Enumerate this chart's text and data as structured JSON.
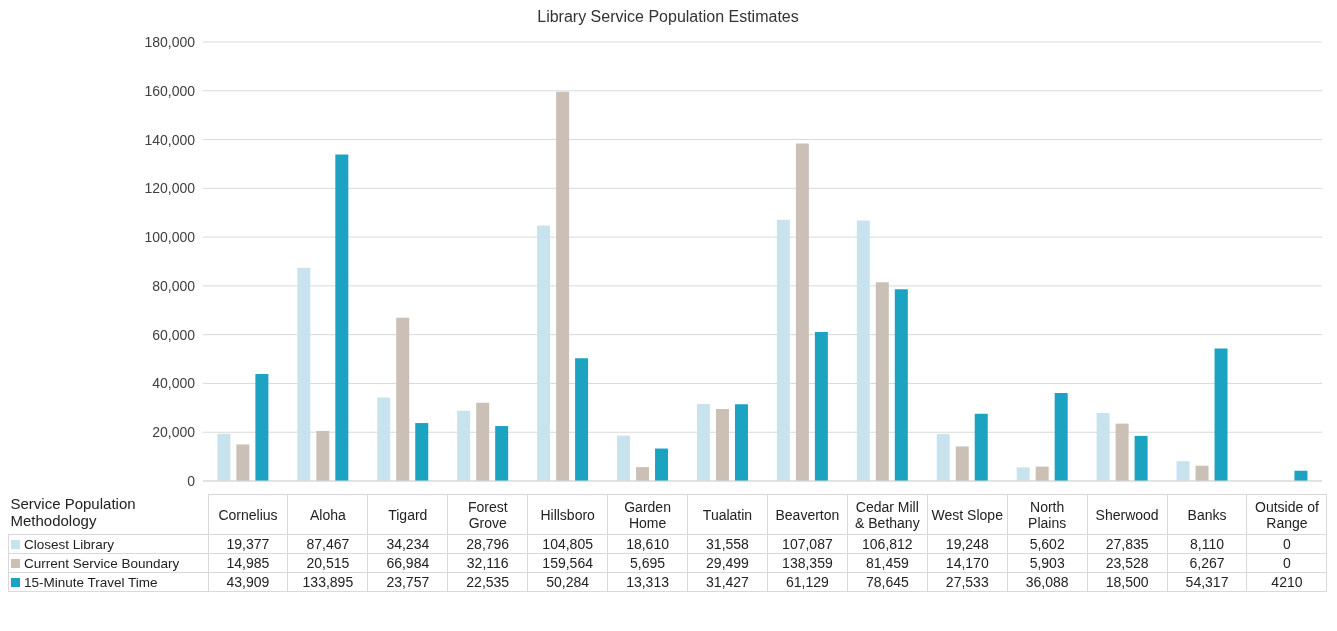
{
  "chart_data": {
    "type": "bar",
    "title": "Library Service Population Estimates",
    "legend_title": "Service Population Methodology",
    "categories": [
      "Cornelius",
      "Aloha",
      "Tigard",
      "Forest Grove",
      "Hillsboro",
      "Garden Home",
      "Tualatin",
      "Beaverton",
      "Cedar Mill & Bethany",
      "West Slope",
      "North Plains",
      "Sherwood",
      "Banks",
      "Outside of Range"
    ],
    "series": [
      {
        "name": "Closest Library",
        "color": "#c9e3ee",
        "values": [
          19377,
          87467,
          34234,
          28796,
          104805,
          18610,
          31558,
          107087,
          106812,
          19248,
          5602,
          27835,
          8110,
          0
        ],
        "value_labels": [
          "19,377",
          "87,467",
          "34,234",
          "28,796",
          "104,805",
          "18,610",
          "31,558",
          "107,087",
          "106,812",
          "19,248",
          "5,602",
          "27,835",
          "8,110",
          "0"
        ]
      },
      {
        "name": "Current Service Boundary",
        "color": "#cbc0b5",
        "values": [
          14985,
          20515,
          66984,
          32116,
          159564,
          5695,
          29499,
          138359,
          81459,
          14170,
          5903,
          23528,
          6267,
          0
        ],
        "value_labels": [
          "14,985",
          "20,515",
          "66,984",
          "32,116",
          "159,564",
          "5,695",
          "29,499",
          "138,359",
          "81,459",
          "14,170",
          "5,903",
          "23,528",
          "6,267",
          "0"
        ]
      },
      {
        "name": "15-Minute Travel Time",
        "color": "#1da3c2",
        "values": [
          43909,
          133895,
          23757,
          22535,
          50284,
          13313,
          31427,
          61129,
          78645,
          27533,
          36088,
          18500,
          54317,
          4210
        ],
        "value_labels": [
          "43,909",
          "133,895",
          "23,757",
          "22,535",
          "50,284",
          "13,313",
          "31,427",
          "61,129",
          "78,645",
          "27,533",
          "36,088",
          "18,500",
          "54,317",
          "4210"
        ]
      }
    ],
    "ylim": [
      0,
      180000
    ],
    "yticks": [
      {
        "value": 0,
        "label": "0"
      },
      {
        "value": 20000,
        "label": "20,000"
      },
      {
        "value": 40000,
        "label": "40,000"
      },
      {
        "value": 60000,
        "label": "60,000"
      },
      {
        "value": 80000,
        "label": "80,000"
      },
      {
        "value": 100000,
        "label": "100,000"
      },
      {
        "value": 120000,
        "label": "120,000"
      },
      {
        "value": 140000,
        "label": "140,000"
      },
      {
        "value": 160000,
        "label": "160,000"
      },
      {
        "value": 180000,
        "label": "180,000"
      }
    ],
    "grid": "y",
    "legend": "bottom"
  }
}
